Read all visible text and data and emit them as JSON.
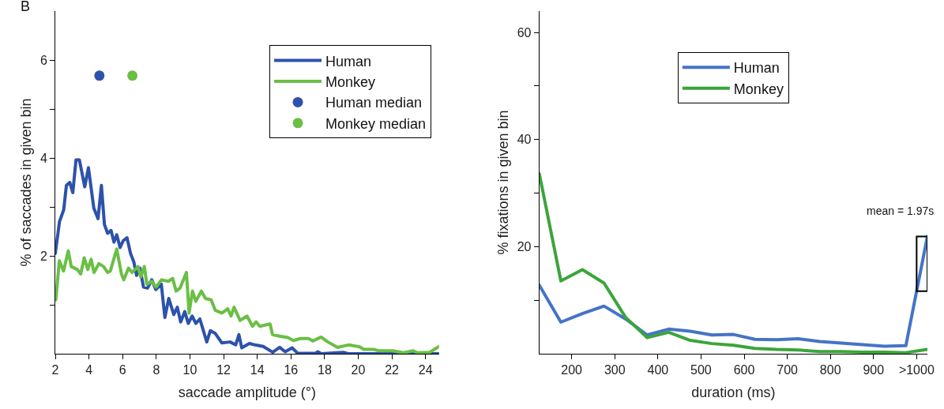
{
  "chart_data": [
    {
      "type": "line",
      "xlabel": "saccade amplitude (°)",
      "ylabel": "% of saccades in given bin",
      "annotations": [
        "B"
      ],
      "xlim": [
        2,
        24.8
      ],
      "xticks": [
        2,
        4,
        6,
        8,
        10,
        12,
        14,
        16,
        18,
        20,
        22,
        24
      ],
      "ylim": [
        0,
        7
      ],
      "yticks": [
        {
          "value": 1,
          "label": null
        },
        2,
        {
          "value": 3,
          "label": null
        },
        4,
        {
          "value": 5,
          "label": null
        },
        6
      ],
      "legend": "top right",
      "series": [
        {
          "name": "Human",
          "color": "#2d52ab",
          "x": [
            2.0,
            2.25,
            2.5,
            2.66,
            2.86,
            3.04,
            3.23,
            3.43,
            3.75,
            3.97,
            4.29,
            4.54,
            4.74,
            4.92,
            5.11,
            5.31,
            5.49,
            5.65,
            5.85,
            6.04,
            6.26,
            6.47,
            6.67,
            6.83,
            7.03,
            7.24,
            7.48,
            7.73,
            7.97,
            8.3,
            8.51,
            8.74,
            9.04,
            9.25,
            9.45,
            9.69,
            9.9,
            10.13,
            10.35,
            10.59,
            11.0,
            11.21,
            11.49,
            11.9,
            12.39,
            12.72,
            12.91,
            13.08,
            13.53,
            13.86,
            14.35,
            14.92,
            15.33,
            15.66,
            16.07,
            16.4,
            17.46,
            17.6,
            17.8,
            19.1,
            19.4,
            24.8
          ],
          "values": [
            2.05,
            2.7,
            2.94,
            3.44,
            3.5,
            3.29,
            3.96,
            3.96,
            3.41,
            3.8,
            2.97,
            2.76,
            3.44,
            2.64,
            2.46,
            2.52,
            2.28,
            2.43,
            2.17,
            2.31,
            2.37,
            2.05,
            1.87,
            1.6,
            1.75,
            1.36,
            1.34,
            1.51,
            1.31,
            1.42,
            0.74,
            1.13,
            0.8,
            0.95,
            0.65,
            0.86,
            0.62,
            0.77,
            0.62,
            0.71,
            0.24,
            0.47,
            0.42,
            0.22,
            0.24,
            0.18,
            0.39,
            0.12,
            0.21,
            0.18,
            0.15,
            0.03,
            0.13,
            0.04,
            0.12,
            0.01,
            0.01,
            0.04,
            0,
            0.03,
            0,
            0
          ]
        },
        {
          "name": "Monkey",
          "color": "#6abf45",
          "x": [
            2.03,
            2.24,
            2.49,
            2.77,
            2.95,
            3.31,
            3.51,
            3.72,
            3.93,
            4.13,
            4.3,
            4.59,
            4.87,
            5.11,
            5.27,
            5.65,
            5.93,
            6.07,
            6.35,
            6.56,
            6.92,
            7.08,
            7.29,
            7.44,
            7.73,
            7.98,
            8.31,
            8.72,
            8.97,
            9.18,
            9.41,
            9.79,
            9.95,
            10.15,
            10.35,
            10.68,
            10.92,
            11.26,
            11.5,
            11.91,
            12.24,
            12.44,
            12.62,
            12.98,
            13.39,
            13.72,
            13.93,
            14.15,
            14.76,
            14.91,
            15.33,
            15.82,
            16.15,
            16.56,
            17.05,
            17.3,
            17.79,
            18.2,
            18.77,
            19.42,
            20.08,
            20.33,
            20.9,
            21.22,
            22.04,
            22.69,
            23.26,
            23.51,
            24.25,
            24.8
          ],
          "values": [
            1.1,
            1.9,
            1.69,
            2.1,
            1.78,
            1.72,
            1.63,
            1.96,
            1.72,
            1.93,
            1.66,
            1.84,
            1.78,
            1.66,
            1.69,
            2.14,
            1.63,
            1.51,
            1.75,
            1.66,
            1.78,
            1.57,
            1.78,
            1.42,
            1.48,
            1.36,
            1.51,
            1.48,
            1.54,
            1.28,
            1.34,
            1.66,
            0.83,
            1.28,
            1.07,
            1.28,
            1.13,
            1.1,
            0.89,
            0.83,
            0.92,
            0.77,
            0.95,
            0.68,
            0.77,
            0.56,
            0.65,
            0.56,
            0.61,
            0.39,
            0.36,
            0.33,
            0.27,
            0.31,
            0.31,
            0.26,
            0.34,
            0.24,
            0.13,
            0.18,
            0.14,
            0.09,
            0.09,
            0.06,
            0.06,
            0.02,
            0.06,
            0.02,
            0.03,
            0.15
          ]
        },
        {
          "name": "Human median",
          "type": "scatter",
          "marker": "circle",
          "color": "#2d52ab",
          "x": [
            4.62
          ],
          "values": [
            5.68
          ]
        },
        {
          "name": "Monkey median",
          "type": "scatter",
          "marker": "circle",
          "color": "#6abf45",
          "x": [
            6.58
          ],
          "values": [
            5.68
          ]
        }
      ]
    },
    {
      "type": "line",
      "xlabel": "duration (ms)",
      "ylabel": "% fixations in given bin",
      "annotations": [
        {
          "text": "mean = 1.97s",
          "x": 1025,
          "y": 21.9
        }
      ],
      "xlim": [
        125,
        1025
      ],
      "xticks": [
        200,
        300,
        400,
        500,
        600,
        700,
        800,
        900,
        {
          "value": 1000,
          "label": ">1000"
        }
      ],
      "ylim": [
        0,
        64
      ],
      "yticks": [
        {
          "value": 10,
          "label": null
        },
        20,
        {
          "value": 30,
          "label": null
        },
        40,
        {
          "value": 50,
          "label": null
        },
        60
      ],
      "legend": "top",
      "x": [
        125,
        175,
        225,
        275,
        325,
        375,
        425,
        475,
        525,
        575,
        625,
        675,
        725,
        775,
        825,
        875,
        925,
        975,
        1025
      ],
      "series": [
        {
          "name": "Human",
          "color": "#4574c6",
          "values": [
            12.8,
            5.9,
            7.5,
            8.9,
            6.5,
            3.5,
            4.6,
            4.2,
            3.5,
            3.6,
            2.7,
            2.6,
            2.8,
            2.3,
            2.0,
            1.7,
            1.4,
            1.5,
            21.9
          ]
        },
        {
          "name": "Monkey",
          "color": "#3ba53b",
          "values": [
            33.6,
            13.6,
            15.7,
            13.2,
            6.8,
            3.0,
            4.0,
            2.5,
            1.9,
            1.6,
            1.0,
            0.8,
            0.7,
            0.4,
            0.4,
            0.3,
            0.3,
            0.2,
            0.8
          ]
        }
      ]
    }
  ]
}
